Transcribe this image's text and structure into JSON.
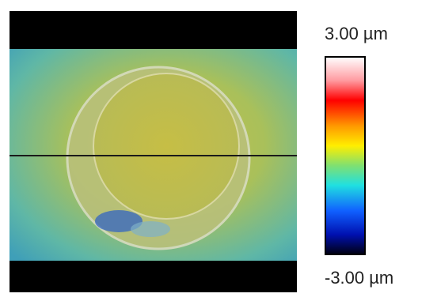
{
  "colorbar": {
    "max_label": "3.00 µm",
    "min_label": "-3.00 µm"
  }
}
